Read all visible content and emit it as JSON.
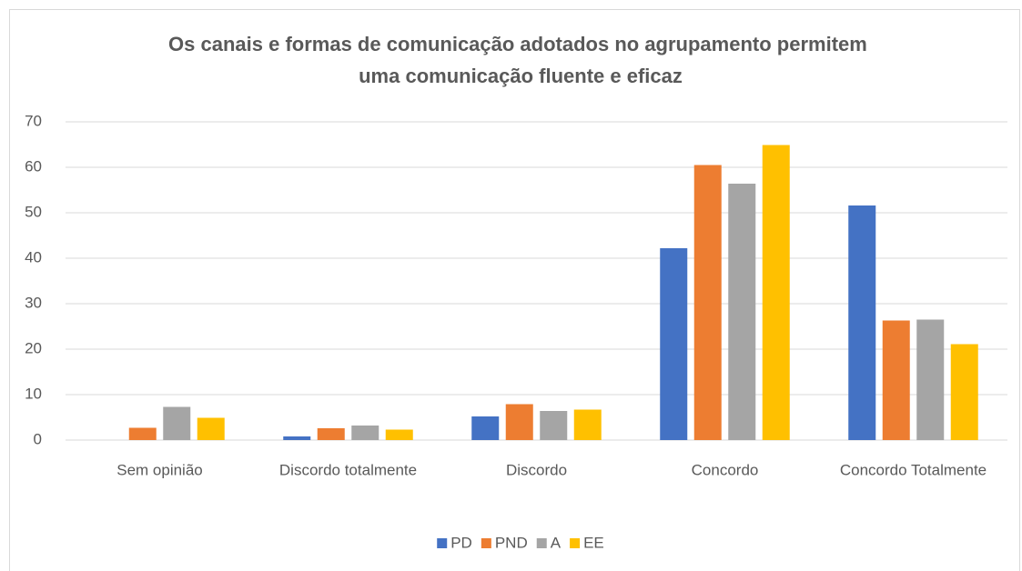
{
  "chart_data": {
    "type": "bar",
    "title": "Os canais e formas de comunicação adotados no agrupamento permitem uma comunicação fluente e eficaz",
    "categories": [
      "Sem opinião",
      "Discordo totalmente",
      "Discordo",
      "Concordo",
      "Concordo Totalmente"
    ],
    "series": [
      {
        "name": "PD",
        "color": "#4472c4",
        "values": [
          0,
          0.8,
          5.2,
          42.2,
          51.6
        ]
      },
      {
        "name": "PND",
        "color": "#ed7d31",
        "values": [
          2.7,
          2.6,
          7.9,
          60.5,
          26.3
        ]
      },
      {
        "name": "A",
        "color": "#a5a5a5",
        "values": [
          7.3,
          3.2,
          6.4,
          56.4,
          26.5
        ]
      },
      {
        "name": "EE",
        "color": "#ffc000",
        "values": [
          4.9,
          2.3,
          6.7,
          64.9,
          21.1
        ]
      }
    ],
    "ylim": [
      0,
      70
    ],
    "yticks": [
      0,
      10,
      20,
      30,
      40,
      50,
      60,
      70
    ],
    "grid": true,
    "legend": "bottom"
  }
}
